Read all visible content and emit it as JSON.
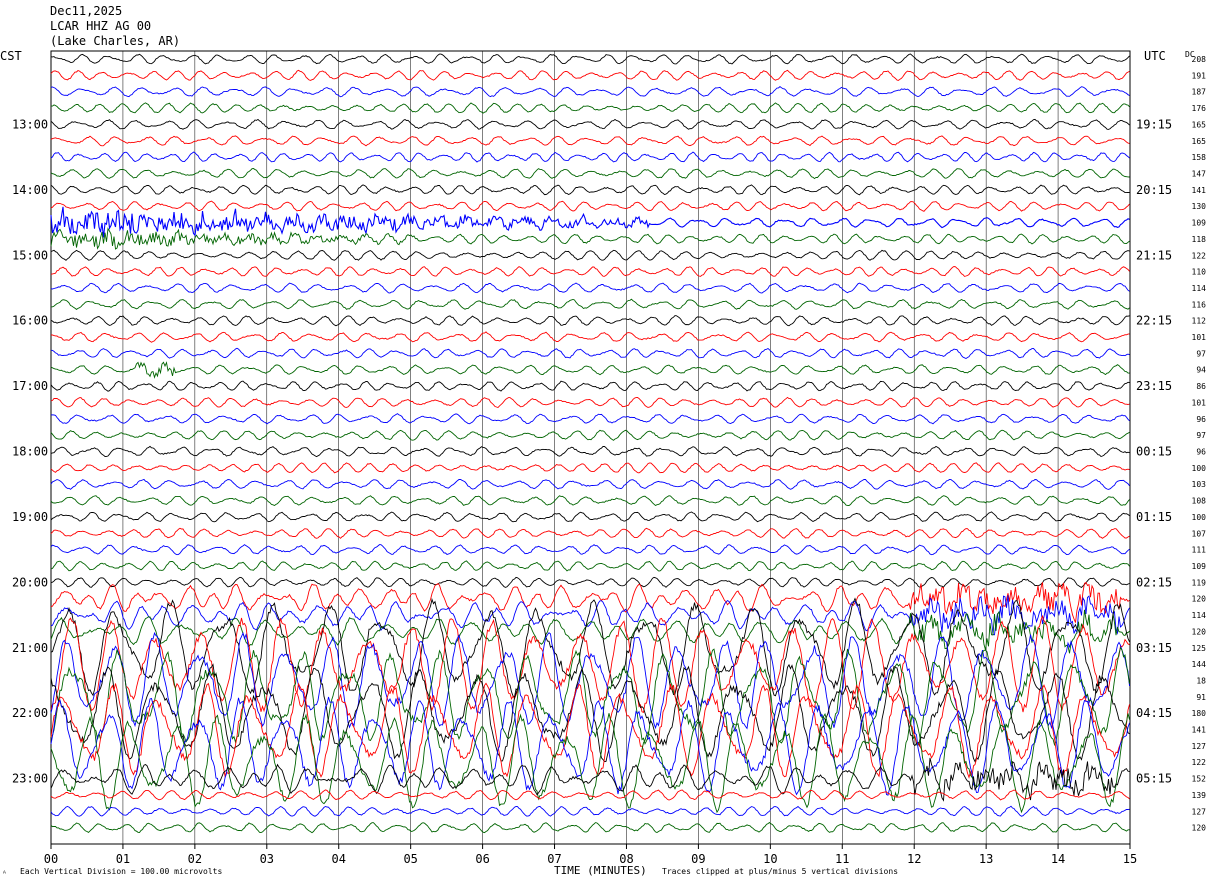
{
  "header": {
    "date": "Dec11,2025",
    "station": "LCAR HHZ AG 00",
    "location": "(Lake Charles, AR)"
  },
  "left_zone": "CST",
  "right_zone": "UTC",
  "dc_label": "DC",
  "footer": {
    "scale": "Each Vertical Division =  100.00 microvolts",
    "clip": "Traces clipped at plus/minus 5 vertical divisions",
    "corner_mark": "ᴬ"
  },
  "colors": {
    "trace_cycle": [
      "#000000",
      "#ff0000",
      "#0000ff",
      "#006400"
    ],
    "grid": "#000000"
  },
  "chart_data": {
    "type": "line",
    "xlabel": "TIME (MINUTES)",
    "x_ticks": [
      "00",
      "01",
      "02",
      "03",
      "04",
      "05",
      "06",
      "07",
      "08",
      "09",
      "10",
      "11",
      "12",
      "13",
      "14",
      "15"
    ],
    "xlim": [
      0,
      15
    ],
    "traces_per_hour": 4,
    "left_hour_labels": [
      "13:00",
      "14:00",
      "15:00",
      "16:00",
      "17:00",
      "18:00",
      "19:00",
      "20:00",
      "21:00",
      "22:00",
      "23:00"
    ],
    "right_hour_labels": [
      "19:15",
      "20:15",
      "21:15",
      "22:15",
      "23:15",
      "00:15",
      "01:15",
      "02:15",
      "03:15",
      "04:15",
      "05:15"
    ],
    "first_labeled_trace_index": 4,
    "dc_offsets": [
      "208",
      "191",
      "187",
      "176",
      "165",
      "165",
      "158",
      "147",
      "141",
      "130",
      "109",
      "118",
      "122",
      "110",
      "114",
      "116",
      "112",
      "101",
      "97",
      "94",
      "86",
      "101",
      "96",
      "97",
      "96",
      "100",
      "103",
      "108",
      "100",
      "107",
      "111",
      "109",
      "119",
      "120",
      "114",
      "120",
      "125",
      "144",
      "18",
      "91",
      "180",
      "141",
      "127",
      "122",
      "152",
      "139",
      "127",
      "120"
    ],
    "trace_activity": [
      "normal",
      "normal",
      "normal",
      "normal",
      "normal",
      "normal",
      "normal",
      "normal",
      "normal",
      "normal",
      "event",
      "event-coda",
      "normal",
      "normal",
      "normal",
      "normal",
      "normal",
      "normal",
      "normal",
      "small-event",
      "normal",
      "normal",
      "normal",
      "normal",
      "normal",
      "normal",
      "normal",
      "normal",
      "normal",
      "normal",
      "normal",
      "normal",
      "normal",
      "noisy",
      "noisy",
      "noisy",
      "clipped",
      "clipped",
      "clipped",
      "clipped",
      "clipped",
      "clipped",
      "clipped",
      "clipped",
      "noisy",
      "normal",
      "normal",
      "normal"
    ]
  }
}
